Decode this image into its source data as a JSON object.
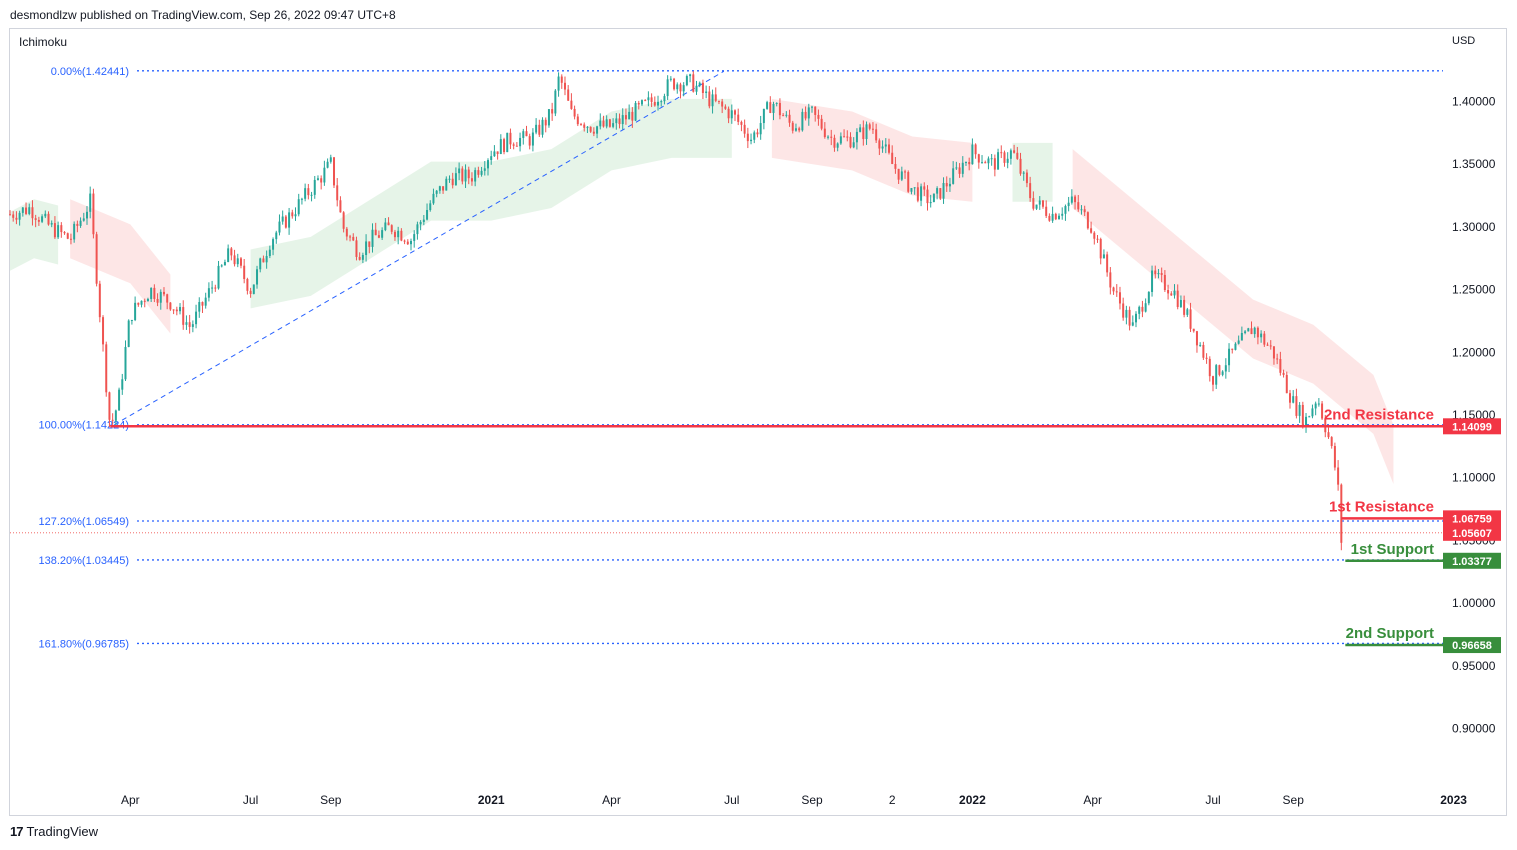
{
  "header": {
    "published": "desmondlzw published on TradingView.com, Sep 26, 2022 09:47 UTC+8"
  },
  "indicator": "Ichimoku",
  "currency": "USD",
  "footer": {
    "logo": "17",
    "brand": "TradingView"
  },
  "colors": {
    "up": "#26a69a",
    "down": "#ef5350",
    "resistance": "#f23645",
    "support": "#388e3c",
    "fib": "#2962ff",
    "cloud_bull": "#e3f3e5",
    "cloud_bear": "#fde3e3"
  },
  "chart_data": {
    "type": "candlestick",
    "symbol_note": "",
    "ylim": [
      0.855,
      1.445
    ],
    "y_ticks": [
      "1.40000",
      "1.35000",
      "1.30000",
      "1.25000",
      "1.20000",
      "1.15000",
      "1.10000",
      "1.05000",
      "1.00000",
      "0.95000",
      "0.90000"
    ],
    "y_tick_values": [
      1.4,
      1.35,
      1.3,
      1.25,
      1.2,
      1.15,
      1.1,
      1.05,
      1.0,
      0.95,
      0.9
    ],
    "x_ticks": [
      {
        "label": "Apr",
        "t": 3.0,
        "bold": false
      },
      {
        "label": "Jul",
        "t": 6.0,
        "bold": false
      },
      {
        "label": "Sep",
        "t": 8.0,
        "bold": false
      },
      {
        "label": "2021",
        "t": 12.0,
        "bold": true
      },
      {
        "label": "Apr",
        "t": 15.0,
        "bold": false
      },
      {
        "label": "Jul",
        "t": 18.0,
        "bold": false
      },
      {
        "label": "Sep",
        "t": 20.0,
        "bold": false
      },
      {
        "label": "2",
        "t": 22.0,
        "bold": false
      },
      {
        "label": "2022",
        "t": 24.0,
        "bold": true
      },
      {
        "label": "Apr",
        "t": 27.0,
        "bold": false
      },
      {
        "label": "Jul",
        "t": 30.0,
        "bold": false
      },
      {
        "label": "Sep",
        "t": 32.0,
        "bold": false
      },
      {
        "label": "2023",
        "t": 36.0,
        "bold": true
      }
    ],
    "price_path": [
      [
        0.0,
        1.31
      ],
      [
        0.5,
        1.315
      ],
      [
        1.0,
        1.3
      ],
      [
        1.5,
        1.29
      ],
      [
        2.0,
        1.32
      ],
      [
        2.3,
        1.21
      ],
      [
        2.5,
        1.14
      ],
      [
        2.7,
        1.16
      ],
      [
        3.0,
        1.23
      ],
      [
        3.5,
        1.25
      ],
      [
        4.0,
        1.24
      ],
      [
        4.5,
        1.22
      ],
      [
        5.0,
        1.25
      ],
      [
        5.5,
        1.28
      ],
      [
        6.0,
        1.25
      ],
      [
        6.5,
        1.29
      ],
      [
        7.0,
        1.31
      ],
      [
        7.5,
        1.33
      ],
      [
        8.0,
        1.35
      ],
      [
        8.3,
        1.3
      ],
      [
        8.7,
        1.28
      ],
      [
        9.0,
        1.29
      ],
      [
        9.5,
        1.3
      ],
      [
        10.0,
        1.29
      ],
      [
        10.5,
        1.32
      ],
      [
        11.0,
        1.34
      ],
      [
        11.5,
        1.34
      ],
      [
        12.0,
        1.36
      ],
      [
        12.5,
        1.37
      ],
      [
        13.0,
        1.37
      ],
      [
        13.5,
        1.39
      ],
      [
        13.7,
        1.42
      ],
      [
        14.0,
        1.39
      ],
      [
        14.5,
        1.38
      ],
      [
        15.0,
        1.38
      ],
      [
        15.5,
        1.39
      ],
      [
        16.0,
        1.4
      ],
      [
        16.5,
        1.415
      ],
      [
        17.0,
        1.415
      ],
      [
        17.5,
        1.4
      ],
      [
        18.0,
        1.39
      ],
      [
        18.5,
        1.37
      ],
      [
        19.0,
        1.4
      ],
      [
        19.5,
        1.38
      ],
      [
        20.0,
        1.39
      ],
      [
        20.5,
        1.37
      ],
      [
        21.0,
        1.37
      ],
      [
        21.5,
        1.38
      ],
      [
        22.0,
        1.35
      ],
      [
        22.5,
        1.33
      ],
      [
        23.0,
        1.32
      ],
      [
        23.5,
        1.34
      ],
      [
        24.0,
        1.36
      ],
      [
        24.5,
        1.35
      ],
      [
        25.0,
        1.36
      ],
      [
        25.5,
        1.32
      ],
      [
        26.0,
        1.31
      ],
      [
        26.5,
        1.32
      ],
      [
        27.0,
        1.3
      ],
      [
        27.5,
        1.25
      ],
      [
        28.0,
        1.22
      ],
      [
        28.5,
        1.26
      ],
      [
        29.0,
        1.25
      ],
      [
        29.5,
        1.22
      ],
      [
        30.0,
        1.18
      ],
      [
        30.5,
        1.2
      ],
      [
        31.0,
        1.22
      ],
      [
        31.5,
        1.2
      ],
      [
        32.0,
        1.16
      ],
      [
        32.3,
        1.145
      ],
      [
        32.6,
        1.165
      ],
      [
        32.9,
        1.13
      ],
      [
        33.1,
        1.1
      ],
      [
        33.2,
        1.05
      ],
      [
        33.25,
        1.035
      ]
    ],
    "ichimoku_cloud": {
      "bull_segments": [
        [
          [
            0.0,
            1.3
          ],
          [
            0.6,
            1.31
          ],
          [
            1.2,
            1.305
          ]
        ],
        [
          [
            6.0,
            1.27
          ],
          [
            7.5,
            1.28
          ],
          [
            9.0,
            1.31
          ],
          [
            10.5,
            1.34
          ],
          [
            12.0,
            1.34
          ],
          [
            13.5,
            1.35
          ],
          [
            15.0,
            1.38
          ],
          [
            16.5,
            1.39
          ],
          [
            18.0,
            1.39
          ]
        ],
        [
          [
            25.0,
            1.355
          ],
          [
            26.0,
            1.355
          ]
        ]
      ],
      "bear_segments": [
        [
          [
            1.5,
            1.31
          ],
          [
            3.0,
            1.29
          ],
          [
            4.0,
            1.25
          ]
        ],
        [
          [
            19.0,
            1.39
          ],
          [
            21.0,
            1.38
          ],
          [
            22.5,
            1.36
          ],
          [
            24.0,
            1.355
          ]
        ],
        [
          [
            26.5,
            1.35
          ],
          [
            28.0,
            1.31
          ],
          [
            29.5,
            1.27
          ],
          [
            31.0,
            1.23
          ],
          [
            32.5,
            1.21
          ],
          [
            34.0,
            1.17
          ],
          [
            34.5,
            1.13
          ]
        ]
      ]
    },
    "fib_levels": [
      {
        "label": "0.00%(1.42441)",
        "value": 1.42441
      },
      {
        "label": "100.00%(1.14224)",
        "value": 1.14224
      },
      {
        "label": "127.20%(1.06549)",
        "value": 1.06549
      },
      {
        "label": "138.20%(1.03445)",
        "value": 1.03445
      },
      {
        "label": "161.80%(0.96785)",
        "value": 0.96785
      }
    ],
    "trendline": {
      "from": [
        2.6,
        1.14224
      ],
      "to": [
        17.8,
        1.424
      ]
    },
    "levels": [
      {
        "name": "2nd Resistance",
        "value": 1.14099,
        "badge": "1.14099",
        "kind": "resistance",
        "t_start": 2.5
      },
      {
        "name": "1st Resistance",
        "value": 1.06759,
        "badge": "1.06759",
        "kind": "resistance",
        "t_start": 33.2
      },
      {
        "name": "1st Support",
        "value": 1.03377,
        "badge": "1.03377",
        "kind": "support",
        "t_start": 33.3
      },
      {
        "name": "2nd Support",
        "value": 0.96658,
        "badge": "0.96658",
        "kind": "support",
        "t_start": 33.3
      }
    ],
    "last_price": {
      "value": 1.05607,
      "badge": "1.05607"
    }
  }
}
